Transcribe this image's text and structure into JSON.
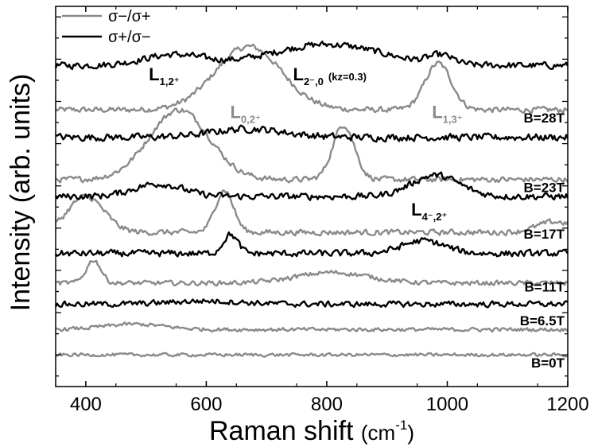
{
  "chart_data": {
    "type": "line",
    "xlabel": "Raman shift",
    "xlabel_unit": "(cm",
    "xlabel_unit_sup": "-1",
    "xlabel_unit_close": ")",
    "ylabel": "Intensity (arb. units)",
    "xlim": [
      350,
      1200
    ],
    "xticks": [
      400,
      600,
      800,
      1000,
      1200
    ],
    "colors": {
      "sigma_minus_sigma_plus": "#8a8a8a",
      "sigma_plus_sigma_minus": "#000000"
    },
    "legend": [
      {
        "label": "σ−/σ+",
        "color": "#8a8a8a"
      },
      {
        "label": "σ+/σ−",
        "color": "#000000"
      }
    ],
    "series": [
      {
        "field": "B=28T",
        "pol": "σ−/σ+",
        "offset": 11.6,
        "noise": 0.12,
        "peaks": [
          {
            "x": 670,
            "h": 3.0,
            "w": 55
          },
          {
            "x": 985,
            "h": 2.2,
            "w": 22
          }
        ]
      },
      {
        "field": "B=28T",
        "pol": "σ+/σ−",
        "offset": 13.7,
        "noise": 0.14,
        "peaks": [
          {
            "x": 545,
            "h": 0.5,
            "w": 50
          },
          {
            "x": 800,
            "h": 1.0,
            "w": 90
          },
          {
            "x": 990,
            "h": 0.4,
            "w": 20
          }
        ]
      },
      {
        "field": "B=23T",
        "pol": "σ−/σ+",
        "offset": 8.3,
        "noise": 0.12,
        "peaks": [
          {
            "x": 555,
            "h": 3.3,
            "w": 50
          },
          {
            "x": 828,
            "h": 2.6,
            "w": 18
          }
        ]
      },
      {
        "field": "B=23T",
        "pol": "σ+/σ−",
        "offset": 10.3,
        "noise": 0.15,
        "peaks": [
          {
            "x": 670,
            "h": 0.4,
            "w": 60
          }
        ]
      },
      {
        "field": "B=17T",
        "pol": "σ−/σ+",
        "offset": 5.8,
        "noise": 0.12,
        "peaks": [
          {
            "x": 400,
            "h": 1.7,
            "w": 30
          },
          {
            "x": 630,
            "h": 2.0,
            "w": 15
          },
          {
            "x": 1180,
            "h": 0.5,
            "w": 30
          }
        ]
      },
      {
        "field": "B=17T",
        "pol": "σ+/σ−",
        "offset": 7.5,
        "noise": 0.14,
        "peaks": [
          {
            "x": 520,
            "h": 0.6,
            "w": 40
          },
          {
            "x": 980,
            "h": 1.0,
            "w": 40
          }
        ]
      },
      {
        "field": "B=11T",
        "pol": "σ−/σ+",
        "offset": 3.4,
        "noise": 0.1,
        "peaks": [
          {
            "x": 413,
            "h": 1.1,
            "w": 12
          },
          {
            "x": 810,
            "h": 0.5,
            "w": 60
          }
        ]
      },
      {
        "field": "B=11T",
        "pol": "σ+/σ−",
        "offset": 4.8,
        "noise": 0.14,
        "peaks": [
          {
            "x": 640,
            "h": 0.9,
            "w": 12
          },
          {
            "x": 960,
            "h": 0.6,
            "w": 35
          }
        ]
      },
      {
        "field": "B=6.5T",
        "pol": "σ−/σ+",
        "offset": 1.2,
        "noise": 0.08,
        "peaks": [
          {
            "x": 480,
            "h": 0.25,
            "w": 50
          }
        ]
      },
      {
        "field": "B=6.5T",
        "pol": "σ+/σ−",
        "offset": 2.4,
        "noise": 0.12,
        "peaks": [
          {
            "x": 600,
            "h": 0.15,
            "w": 60
          }
        ]
      },
      {
        "field": "B=0T",
        "pol": "σ−/σ+",
        "offset": 0.0,
        "noise": 0.07,
        "peaks": []
      }
    ],
    "field_labels": [
      {
        "text": "B=28T",
        "y": 11.0
      },
      {
        "text": "B=23T",
        "y": 7.7
      },
      {
        "text": "B=17T",
        "y": 5.5
      },
      {
        "text": "B=11T",
        "y": 3.0
      },
      {
        "text": "B=6.5T",
        "y": 1.4
      },
      {
        "text": "B=0T",
        "y": -0.6
      }
    ],
    "annotations": [
      {
        "main": "L",
        "sub": "1,2⁺",
        "extra": "",
        "x": 530,
        "y": 13.0,
        "color": "#000000"
      },
      {
        "main": "L",
        "sub": "0,2⁺",
        "extra": "",
        "x": 665,
        "y": 11.2,
        "color": "#8a8a8a"
      },
      {
        "main": "L",
        "sub": "2⁻,0",
        "extra": "(kz=0.3)",
        "x": 805,
        "y": 13.0,
        "color": "#000000"
      },
      {
        "main": "L",
        "sub": "1,3⁺",
        "extra": "",
        "x": 1000,
        "y": 11.2,
        "color": "#8a8a8a"
      },
      {
        "main": "L",
        "sub": "4⁻,2⁺",
        "extra": "",
        "x": 970,
        "y": 6.6,
        "color": "#000000"
      }
    ],
    "ylim": [
      -1.5,
      16.5
    ]
  }
}
